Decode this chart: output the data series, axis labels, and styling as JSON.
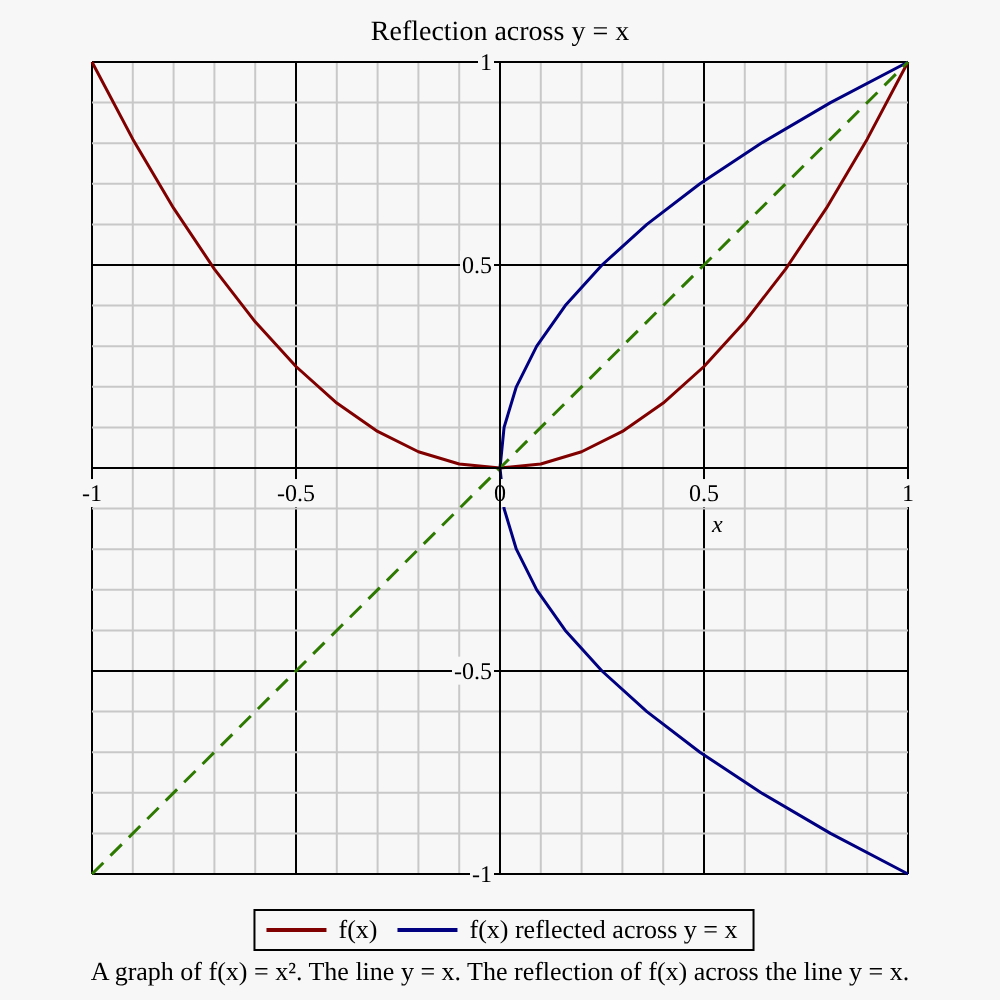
{
  "chart_data": {
    "type": "line",
    "title": "Reflection across y = x",
    "xlabel": "x",
    "xlim": [
      -1,
      1
    ],
    "ylim": [
      -1,
      1
    ],
    "xticks": [
      -1,
      -0.5,
      0,
      0.5,
      1
    ],
    "yticks": [
      -1,
      -0.5,
      0.5,
      1
    ],
    "grid": true,
    "legend": "bottom",
    "marker": "none",
    "series": [
      {
        "name": "f(x)",
        "color": "#800000",
        "line_style": "solid",
        "x": [
          -1,
          -0.9,
          -0.8,
          -0.7,
          -0.6,
          -0.5,
          -0.4,
          -0.3,
          -0.2,
          -0.1,
          0,
          0.1,
          0.2,
          0.3,
          0.4,
          0.5,
          0.6,
          0.7,
          0.8,
          0.9,
          1
        ],
        "values": [
          1,
          0.81,
          0.64,
          0.49,
          0.36,
          0.25,
          0.16,
          0.09,
          0.04,
          0.01,
          0,
          0.01,
          0.04,
          0.09,
          0.16,
          0.25,
          0.36,
          0.49,
          0.64,
          0.81,
          1
        ]
      },
      {
        "name": "f(x) reflected across y = x",
        "color": "#000080",
        "line_style": "solid",
        "x": [
          1,
          0.81,
          0.64,
          0.49,
          0.36,
          0.25,
          0.16,
          0.09,
          0.04,
          0.01,
          0,
          0.01,
          0.04,
          0.09,
          0.16,
          0.25,
          0.36,
          0.49,
          0.64,
          0.81,
          1
        ],
        "values": [
          -1,
          -0.9,
          -0.8,
          -0.7,
          -0.6,
          -0.5,
          -0.4,
          -0.3,
          -0.2,
          -0.1,
          0,
          0.1,
          0.2,
          0.3,
          0.4,
          0.5,
          0.6,
          0.7,
          0.8,
          0.9,
          1
        ]
      },
      {
        "color": "#2e7a00",
        "line_style": "dashed",
        "x": [
          -1,
          1
        ],
        "values": [
          -1,
          1
        ]
      }
    ],
    "annotations": [
      "A graph of f(x) = x². The line y = x. The reflection of f(x) across the line y = x."
    ]
  }
}
